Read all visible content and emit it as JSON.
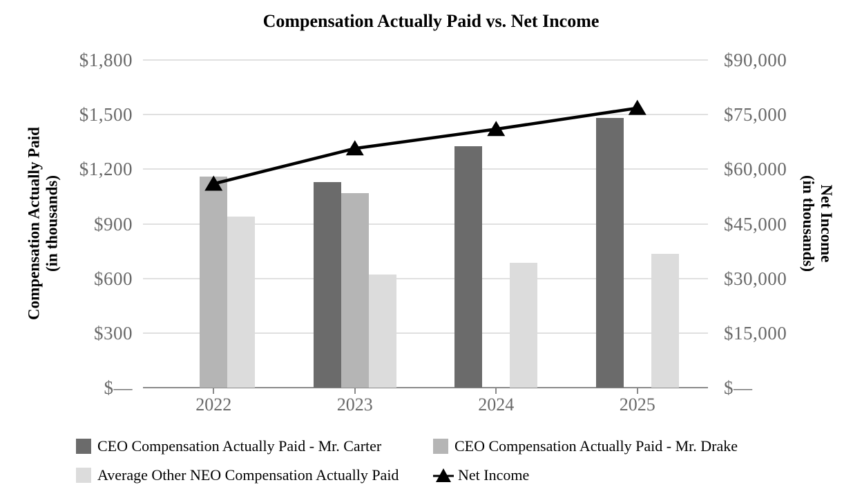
{
  "chart_data": {
    "type": "bar+line",
    "title": "Compensation Actually Paid vs. Net Income",
    "categories": [
      "2022",
      "2023",
      "2024",
      "2025"
    ],
    "series": [
      {
        "name": "CEO Compensation Actually Paid - Mr. Carter",
        "type": "bar",
        "axis": "left",
        "color": "#6b6b6b",
        "values": [
          null,
          1130,
          1325,
          1480
        ]
      },
      {
        "name": "CEO Compensation Actually Paid - Mr. Drake",
        "type": "bar",
        "axis": "left",
        "color": "#b5b5b5",
        "values": [
          1160,
          1070,
          null,
          null
        ]
      },
      {
        "name": "Average Other NEO Compensation Actually Paid",
        "type": "bar",
        "axis": "left",
        "color": "#dcdcdc",
        "values": [
          940,
          620,
          685,
          735
        ]
      },
      {
        "name": "Net Income",
        "type": "line",
        "axis": "right",
        "color": "#000000",
        "values": [
          56000,
          65700,
          71000,
          76800
        ]
      }
    ],
    "left_axis": {
      "title_line1": "Compensation Actually Paid",
      "title_line2": "(in thousands)",
      "min": 0,
      "max": 1800,
      "step": 300,
      "tick_labels": [
        "$—",
        "$300",
        "$600",
        "$900",
        "$1,200",
        "$1,500",
        "$1,800"
      ]
    },
    "right_axis": {
      "title_line1": "Net Income",
      "title_line2": "(in thousands)",
      "min": 0,
      "max": 90000,
      "step": 15000,
      "tick_labels": [
        "$—",
        "$15,000",
        "$30,000",
        "$45,000",
        "$60,000",
        "$75,000",
        "$90,000"
      ]
    },
    "grid": true,
    "legend_position": "bottom",
    "style": {
      "gridline_color": "#e0e0e0",
      "axis_line_color": "#898989",
      "tick_label_color": "#696969",
      "line_marker": "triangle"
    }
  }
}
